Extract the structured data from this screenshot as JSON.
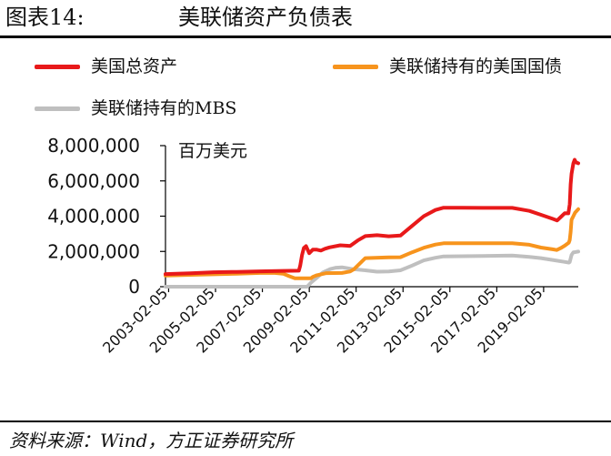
{
  "header": {
    "figure_number": "图表14:",
    "title": "美联储资产负债表"
  },
  "footer": {
    "source": "资料来源：Wind，方正证券研究所"
  },
  "colors": {
    "total_assets": "#e8191a",
    "treasuries": "#f7941d",
    "mbs": "#bfbfbf"
  },
  "chart_data": {
    "type": "line",
    "unit_label": "百万美元",
    "title": "",
    "xlabel": "",
    "ylabel": "",
    "ylim": [
      0,
      8000000
    ],
    "yticks": [
      "8,000,000",
      "6,000,000",
      "4,000,000",
      "2,000,000",
      "0"
    ],
    "ytick_values": [
      8000000,
      6000000,
      4000000,
      2000000,
      0
    ],
    "xlim": [
      "2002-12-18",
      "2020-07-29"
    ],
    "xticks": [
      "2003-02-05",
      "2005-02-05",
      "2007-02-05",
      "2009-02-05",
      "2011-02-05",
      "2013-02-05",
      "2015-02-05",
      "2017-02-05",
      "2019-02-05"
    ],
    "legend_position": "top",
    "grid": false,
    "series": [
      {
        "name": "美国总资产",
        "color_key": "total_assets",
        "points": [
          [
            "2002-12-18",
            720000
          ],
          [
            "2004-01-07",
            760000
          ],
          [
            "2005-01-05",
            820000
          ],
          [
            "2006-01-04",
            840000
          ],
          [
            "2007-01-03",
            870000
          ],
          [
            "2008-01-02",
            900000
          ],
          [
            "2008-08-27",
            910000
          ],
          [
            "2008-09-17",
            1200000
          ],
          [
            "2008-10-15",
            1800000
          ],
          [
            "2008-11-12",
            2200000
          ],
          [
            "2008-12-17",
            2300000
          ],
          [
            "2009-02-04",
            1900000
          ],
          [
            "2009-04-01",
            2100000
          ],
          [
            "2009-06-03",
            2100000
          ],
          [
            "2009-08-05",
            2050000
          ],
          [
            "2009-10-07",
            2150000
          ],
          [
            "2009-12-16",
            2230000
          ],
          [
            "2010-06-02",
            2350000
          ],
          [
            "2010-11-03",
            2310000
          ],
          [
            "2011-03-02",
            2620000
          ],
          [
            "2011-06-29",
            2870000
          ],
          [
            "2011-12-28",
            2920000
          ],
          [
            "2012-06-27",
            2860000
          ],
          [
            "2012-12-26",
            2900000
          ],
          [
            "2013-06-26",
            3450000
          ],
          [
            "2013-12-25",
            4000000
          ],
          [
            "2014-06-25",
            4350000
          ],
          [
            "2014-10-29",
            4480000
          ],
          [
            "2015-06-24",
            4480000
          ],
          [
            "2016-06-29",
            4470000
          ],
          [
            "2017-06-28",
            4470000
          ],
          [
            "2017-10-04",
            4470000
          ],
          [
            "2018-06-27",
            4300000
          ],
          [
            "2018-12-26",
            4080000
          ],
          [
            "2019-06-26",
            3850000
          ],
          [
            "2019-09-04",
            3760000
          ],
          [
            "2019-10-30",
            3950000
          ],
          [
            "2020-01-01",
            4170000
          ],
          [
            "2020-02-26",
            4160000
          ],
          [
            "2020-03-18",
            4670000
          ],
          [
            "2020-04-01",
            5800000
          ],
          [
            "2020-04-15",
            6400000
          ],
          [
            "2020-05-13",
            7000000
          ],
          [
            "2020-06-03",
            7200000
          ],
          [
            "2020-06-24",
            7050000
          ],
          [
            "2020-07-29",
            7000000
          ]
        ]
      },
      {
        "name": "美联储持有的美国国债",
        "color_key": "treasuries",
        "points": [
          [
            "2002-12-18",
            630000
          ],
          [
            "2004-01-07",
            670000
          ],
          [
            "2005-01-05",
            700000
          ],
          [
            "2006-01-04",
            740000
          ],
          [
            "2007-01-03",
            780000
          ],
          [
            "2007-08-01",
            790000
          ],
          [
            "2007-12-26",
            740000
          ],
          [
            "2008-03-26",
            600000
          ],
          [
            "2008-06-25",
            480000
          ],
          [
            "2008-12-24",
            476000
          ],
          [
            "2009-03-04",
            480000
          ],
          [
            "2009-04-01",
            560000
          ],
          [
            "2009-06-03",
            650000
          ],
          [
            "2009-10-28",
            770000
          ],
          [
            "2010-06-30",
            777000
          ],
          [
            "2010-11-03",
            860000
          ],
          [
            "2011-01-05",
            1000000
          ],
          [
            "2011-03-30",
            1300000
          ],
          [
            "2011-06-29",
            1620000
          ],
          [
            "2012-06-27",
            1660000
          ],
          [
            "2012-12-26",
            1670000
          ],
          [
            "2013-06-26",
            1950000
          ],
          [
            "2013-12-25",
            2210000
          ],
          [
            "2014-06-25",
            2390000
          ],
          [
            "2014-10-29",
            2460000
          ],
          [
            "2016-06-29",
            2460000
          ],
          [
            "2017-10-04",
            2465000
          ],
          [
            "2018-06-27",
            2380000
          ],
          [
            "2018-12-26",
            2220000
          ],
          [
            "2019-06-26",
            2120000
          ],
          [
            "2019-08-28",
            2080000
          ],
          [
            "2019-10-30",
            2190000
          ],
          [
            "2020-01-01",
            2330000
          ],
          [
            "2020-03-04",
            2500000
          ],
          [
            "2020-03-18",
            2650000
          ],
          [
            "2020-04-01",
            3100000
          ],
          [
            "2020-04-15",
            3800000
          ],
          [
            "2020-05-13",
            4000000
          ],
          [
            "2020-06-10",
            4200000
          ],
          [
            "2020-07-29",
            4400000
          ]
        ]
      },
      {
        "name": "美联储持有的MBS",
        "color_key": "mbs",
        "points": [
          [
            "2002-12-18",
            0
          ],
          [
            "2008-12-31",
            0
          ],
          [
            "2009-01-07",
            15000
          ],
          [
            "2009-03-04",
            230000
          ],
          [
            "2009-06-03",
            510000
          ],
          [
            "2009-09-02",
            800000
          ],
          [
            "2009-12-30",
            1000000
          ],
          [
            "2010-03-31",
            1080000
          ],
          [
            "2010-06-30",
            1100000
          ],
          [
            "2010-12-29",
            990000
          ],
          [
            "2011-06-29",
            930000
          ],
          [
            "2011-12-28",
            850000
          ],
          [
            "2012-06-27",
            860000
          ],
          [
            "2012-12-26",
            930000
          ],
          [
            "2013-06-26",
            1200000
          ],
          [
            "2013-12-25",
            1490000
          ],
          [
            "2014-06-25",
            1640000
          ],
          [
            "2014-10-29",
            1720000
          ],
          [
            "2016-06-29",
            1740000
          ],
          [
            "2017-10-04",
            1770000
          ],
          [
            "2018-06-27",
            1690000
          ],
          [
            "2018-12-26",
            1620000
          ],
          [
            "2019-06-26",
            1520000
          ],
          [
            "2019-12-25",
            1410000
          ],
          [
            "2020-03-04",
            1370000
          ],
          [
            "2020-03-18",
            1400000
          ],
          [
            "2020-04-01",
            1600000
          ],
          [
            "2020-04-15",
            1800000
          ],
          [
            "2020-05-13",
            1950000
          ],
          [
            "2020-06-10",
            1960000
          ],
          [
            "2020-07-29",
            1990000
          ]
        ]
      }
    ]
  }
}
